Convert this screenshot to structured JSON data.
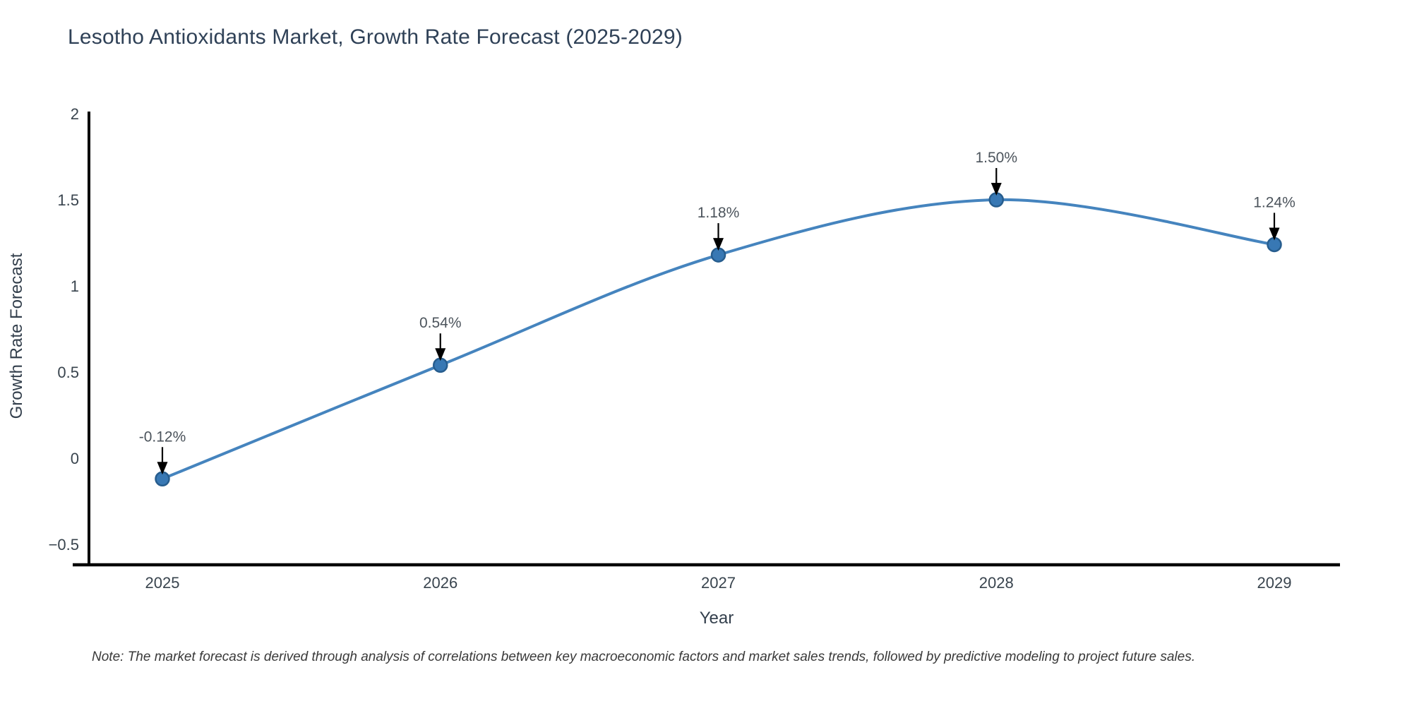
{
  "title": "Lesotho Antioxidants Market, Growth Rate Forecast (2025-2029)",
  "footnote": "Note: The market forecast is derived through analysis of correlations between key macroeconomic factors and market sales trends, followed by predictive modeling to project future sales.",
  "chart_data": {
    "type": "line",
    "line_shape": "spline",
    "title": "Lesotho Antioxidants Market, Growth Rate Forecast (2025-2029)",
    "xlabel": "Year",
    "ylabel": "Growth Rate Forecast",
    "categories": [
      "2025",
      "2026",
      "2027",
      "2028",
      "2029"
    ],
    "values": [
      -0.12,
      0.54,
      1.18,
      1.5,
      1.24
    ],
    "point_labels": [
      "-0.12%",
      "0.54%",
      "1.18%",
      "1.50%",
      "1.24%"
    ],
    "y_ticks": [
      -0.5,
      0,
      0.5,
      1,
      1.5,
      2
    ],
    "y_tick_labels": [
      "−0.5",
      "0",
      "0.5",
      "1",
      "1.5",
      "2"
    ],
    "ylim": [
      -0.62,
      2.02
    ],
    "grid": false,
    "legend": "none",
    "annotation_style": "value label with downward black arrow to marker"
  },
  "colors": {
    "line": "#4584BE",
    "marker_fill": "#3878B4",
    "marker_edge": "#275D8E",
    "axis": "#000000",
    "arrow": "#000000",
    "tick_text": "#39444E",
    "annotation_text": "#4C545C",
    "title_text": "#2F4157",
    "axis_label_text": "#333F4C",
    "note_text": "#3A3A3A"
  }
}
